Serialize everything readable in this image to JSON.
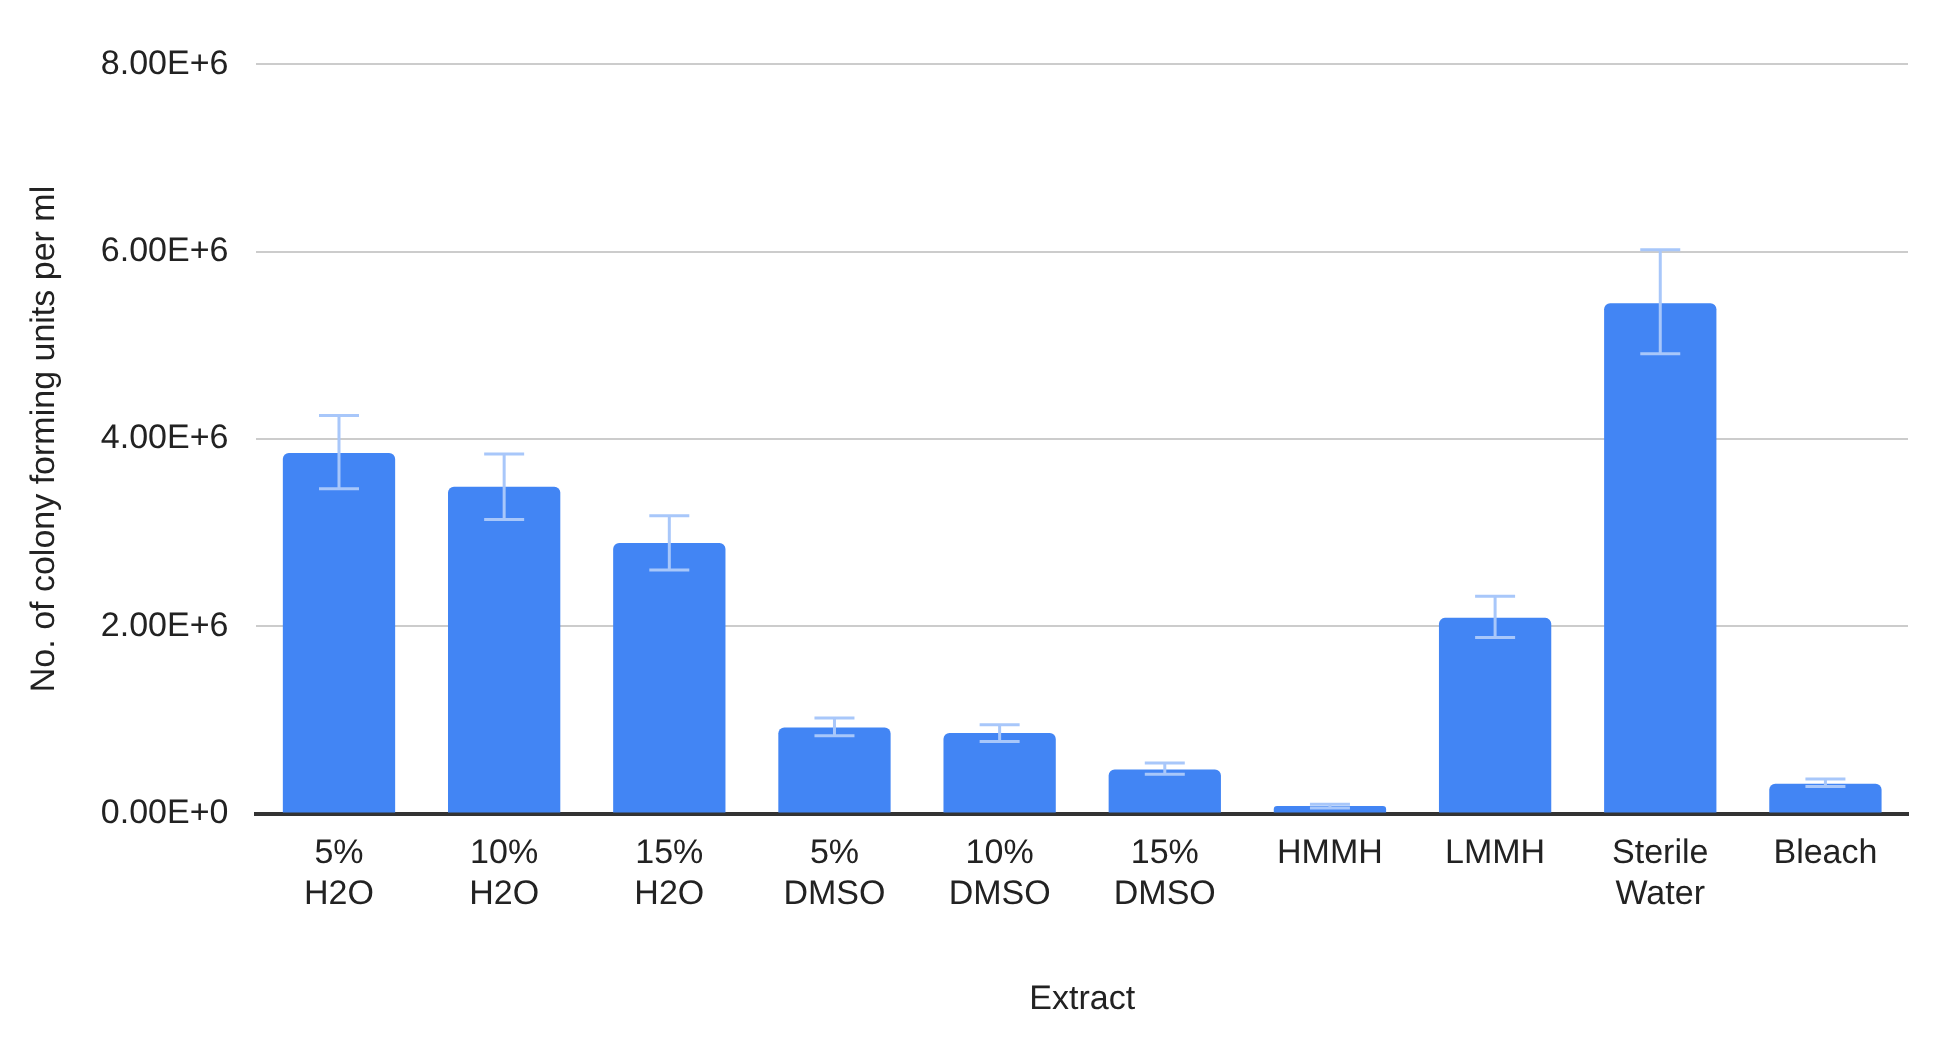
{
  "chart_data": {
    "type": "bar",
    "xlabel": "Extract",
    "ylabel": "No. of colony forming units per ml",
    "categories": [
      "5% H2O",
      "10% H2O",
      "15% H2O",
      "5% DMSO",
      "10% DMSO",
      "15% DMSO",
      "HMMH",
      "LMMH",
      "Sterile Water",
      "Bleach"
    ],
    "values": [
      3850000,
      3490000,
      2890000,
      920000,
      860000,
      470000,
      80000,
      2090000,
      5450000,
      320000
    ],
    "errors": [
      [
        3470000,
        4250000
      ],
      [
        3140000,
        3840000
      ],
      [
        2600000,
        3180000
      ],
      [
        830000,
        1020000
      ],
      [
        770000,
        950000
      ],
      [
        420000,
        540000
      ],
      [
        60000,
        100000
      ],
      [
        1880000,
        2320000
      ],
      [
        4910000,
        6020000
      ],
      [
        290000,
        370000
      ]
    ],
    "color": "#4285f4",
    "ylim": [
      0,
      8000000
    ],
    "yticks": [
      {
        "value": 0,
        "label": "0.00E+0"
      },
      {
        "value": 2000000,
        "label": "2.00E+6"
      },
      {
        "value": 4000000,
        "label": "4.00E+6"
      },
      {
        "value": 6000000,
        "label": "6.00E+6"
      },
      {
        "value": 8000000,
        "label": "8.00E+6"
      }
    ],
    "grid": "y",
    "legend": false
  }
}
